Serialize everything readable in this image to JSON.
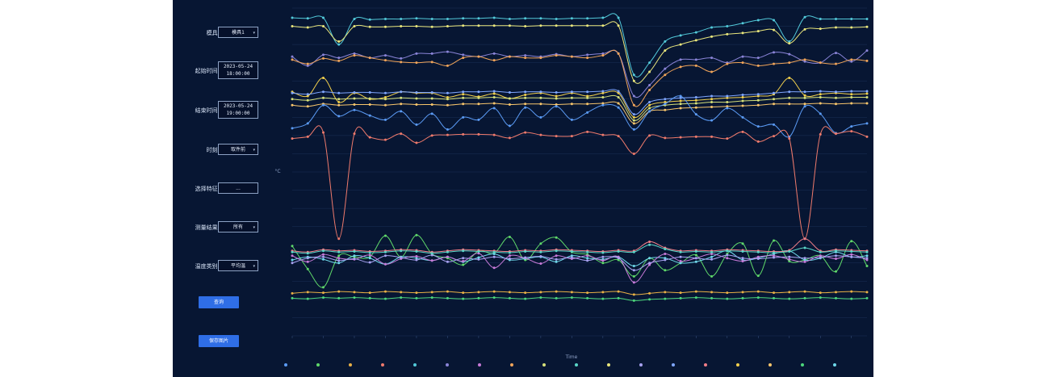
{
  "controls": {
    "mold_label": "模具:",
    "mold_value": "模具1",
    "start_label": "起始时间:",
    "start_date": "2023-05-24",
    "start_time": "18:00:00",
    "end_label": "结束时间:",
    "end_date": "2023-05-24",
    "end_time": "19:00:00",
    "period_label": "时刻:",
    "period_value": "取件前",
    "feature_label": "选择特征:",
    "feature_value": "...",
    "result_label": "测量结果:",
    "result_value": "所有",
    "temp_label": "温度类别:",
    "temp_value": "平均温",
    "query_button": "查询",
    "save_button": "保存图片"
  },
  "colors": {
    "background": "#071633",
    "series": [
      "#5b9bf5",
      "#5fd86a",
      "#e8b046",
      "#ef7a6c",
      "#52c9d9",
      "#8a84d8",
      "#c77ad8",
      "#f0a45a",
      "#d6e07a",
      "#5ad6c8",
      "#e9e67c",
      "#a7a1f0",
      "#7fa6ff",
      "#f07e88",
      "#f2d04c",
      "#f9c66c",
      "#4cd67c",
      "#6fd8ea"
    ]
  },
  "chart_data": {
    "type": "line",
    "xlabel": "Time",
    "ylabel": "°C",
    "y_tick_count": 19,
    "x_point_count": 38,
    "series": [
      {
        "color": "#52c9d9",
        "values": [
          2024,
          2023,
          2024,
          1980,
          2022,
          2021,
          2022,
          2022,
          2023,
          2022,
          2022,
          2023,
          2023,
          2024,
          2022,
          2023,
          2023,
          2022,
          2023,
          2023,
          2024,
          2024,
          1930,
          1950,
          1985,
          1995,
          2000,
          2008,
          2010,
          2015,
          2020,
          2020,
          1985,
          2025,
          2022,
          2022,
          2022,
          2022
        ]
      },
      {
        "color": "#e9e67c",
        "values": [
          2010,
          2008,
          2010,
          1985,
          2010,
          2009,
          2009,
          2010,
          2010,
          2009,
          2010,
          2011,
          2011,
          2011,
          2011,
          2010,
          2011,
          2011,
          2011,
          2011,
          2011,
          2011,
          1920,
          1935,
          1970,
          1980,
          1987,
          1993,
          1997,
          1999,
          2002,
          2004,
          1982,
          2005,
          2006,
          2008,
          2008,
          2009
        ]
      },
      {
        "color": "#8a84d8",
        "values": [
          1960,
          1945,
          1963,
          1958,
          1965,
          1958,
          1962,
          1957,
          1965,
          1965,
          1968,
          1963,
          1960,
          1965,
          1960,
          1962,
          1960,
          1964,
          1960,
          1963,
          1965,
          1965,
          1895,
          1913,
          1940,
          1955,
          1955,
          1958,
          1950,
          1960,
          1958,
          1967,
          1964,
          1952,
          1950,
          1966,
          1952,
          1970
        ]
      },
      {
        "color": "#f0a45a",
        "values": [
          1955,
          1948,
          1957,
          1953,
          1962,
          1958,
          1954,
          1951,
          1950,
          1951,
          1945,
          1958,
          1960,
          1954,
          1960,
          1958,
          1958,
          1962,
          1960,
          1958,
          1962,
          1965,
          1880,
          1905,
          1930,
          1943,
          1945,
          1935,
          1948,
          1950,
          1945,
          1948,
          1950,
          1955,
          1950,
          1948,
          1955,
          1953
        ]
      },
      {
        "color": "#f2d04c",
        "values": [
          1902,
          1895,
          1925,
          1885,
          1900,
          1890,
          1893,
          1902,
          1900,
          1900,
          1893,
          1898,
          1894,
          1899,
          1891,
          1897,
          1900,
          1895,
          1900,
          1895,
          1900,
          1900,
          1860,
          1880,
          1885,
          1887,
          1888,
          1890,
          1892,
          1893,
          1895,
          1898,
          1925,
          1896,
          1898,
          1900,
          1898,
          1899
        ]
      },
      {
        "color": "#7fa6ff",
        "values": [
          1900,
          1898,
          1902,
          1900,
          1901,
          1901,
          1900,
          1902,
          1901,
          1901,
          1900,
          1902,
          1902,
          1903,
          1901,
          1902,
          1902,
          1901,
          1902,
          1902,
          1903,
          1903,
          1865,
          1885,
          1890,
          1892,
          1893,
          1895,
          1895,
          1897,
          1898,
          1900,
          1902,
          1902,
          1903,
          1902,
          1903,
          1903
        ]
      },
      {
        "color": "#d6e07a",
        "values": [
          1890,
          1888,
          1892,
          1890,
          1891,
          1891,
          1890,
          1892,
          1891,
          1891,
          1890,
          1892,
          1892,
          1893,
          1891,
          1892,
          1892,
          1891,
          1892,
          1892,
          1893,
          1893,
          1855,
          1875,
          1880,
          1882,
          1883,
          1885,
          1885,
          1887,
          1888,
          1890,
          1892,
          1892,
          1893,
          1892,
          1893,
          1893
        ]
      },
      {
        "color": "#f9c66c",
        "values": [
          1880,
          1878,
          1882,
          1880,
          1881,
          1881,
          1880,
          1882,
          1881,
          1881,
          1880,
          1882,
          1882,
          1883,
          1881,
          1882,
          1882,
          1881,
          1882,
          1882,
          1883,
          1883,
          1850,
          1870,
          1872,
          1875,
          1876,
          1877,
          1878,
          1879,
          1880,
          1882,
          1882,
          1882,
          1883,
          1882,
          1883,
          1883
        ]
      },
      {
        "color": "#5b9bf5",
        "values": [
          1842,
          1850,
          1880,
          1862,
          1872,
          1863,
          1856,
          1870,
          1848,
          1866,
          1840,
          1860,
          1856,
          1875,
          1846,
          1876,
          1860,
          1878,
          1856,
          1868,
          1880,
          1876,
          1840,
          1870,
          1882,
          1895,
          1865,
          1855,
          1875,
          1860,
          1845,
          1848,
          1828,
          1878,
          1866,
          1834,
          1845,
          1850
        ]
      },
      {
        "color": "#ef7a6c",
        "values": [
          1825,
          1828,
          1835,
          1660,
          1833,
          1827,
          1823,
          1833,
          1818,
          1830,
          1831,
          1832,
          1832,
          1831,
          1826,
          1835,
          1831,
          1829,
          1829,
          1836,
          1831,
          1829,
          1800,
          1830,
          1826,
          1827,
          1828,
          1828,
          1825,
          1836,
          1820,
          1829,
          1825,
          1660,
          1832,
          1833,
          1837,
          1828
        ]
      },
      {
        "color": "#5fd86a",
        "values": [
          1648,
          1610,
          1580,
          1632,
          1630,
          1630,
          1665,
          1630,
          1666,
          1635,
          1628,
          1617,
          1640,
          1636,
          1663,
          1625,
          1652,
          1662,
          1638,
          1634,
          1620,
          1625,
          1598,
          1628,
          1608,
          1620,
          1633,
          1598,
          1635,
          1652,
          1599,
          1657,
          1623,
          1625,
          1632,
          1606,
          1656,
          1615
        ]
      },
      {
        "color": "#6fd8ea",
        "values": [
          1625,
          1630,
          1626,
          1620,
          1632,
          1628,
          1618,
          1630,
          1628,
          1624,
          1630,
          1622,
          1629,
          1635,
          1625,
          1627,
          1630,
          1622,
          1632,
          1628,
          1626,
          1630,
          1615,
          1628,
          1628,
          1620,
          1622,
          1630,
          1640,
          1625,
          1628,
          1635,
          1640,
          1625,
          1628,
          1638,
          1630,
          1632
        ]
      },
      {
        "color": "#c77ad8",
        "values": [
          1632,
          1622,
          1634,
          1628,
          1626,
          1633,
          1618,
          1627,
          1631,
          1624,
          1630,
          1623,
          1636,
          1612,
          1632,
          1628,
          1619,
          1632,
          1627,
          1632,
          1624,
          1630,
          1588,
          1617,
          1635,
          1623,
          1628,
          1635,
          1628,
          1623,
          1630,
          1632,
          1626,
          1622,
          1632,
          1627,
          1634,
          1625
        ]
      },
      {
        "color": "#a7a1f0",
        "values": [
          1620,
          1628,
          1630,
          1624,
          1627,
          1621,
          1632,
          1629,
          1625,
          1633,
          1622,
          1628,
          1626,
          1630,
          1627,
          1629,
          1631,
          1626,
          1629,
          1624,
          1630,
          1628,
          1608,
          1620,
          1625,
          1630,
          1628,
          1626,
          1633,
          1628,
          1627,
          1629,
          1630,
          1628,
          1629,
          1632,
          1630,
          1628
        ]
      },
      {
        "color": "#f07e88",
        "values": [
          1640,
          1638,
          1642,
          1640,
          1641,
          1639,
          1640,
          1642,
          1641,
          1638,
          1640,
          1642,
          1641,
          1640,
          1639,
          1641,
          1640,
          1642,
          1641,
          1640,
          1639,
          1641,
          1640,
          1655,
          1645,
          1640,
          1641,
          1640,
          1642,
          1641,
          1640,
          1639,
          1641,
          1660,
          1640,
          1642,
          1641,
          1640
        ]
      },
      {
        "color": "#5ad6c8",
        "values": [
          1638,
          1636,
          1640,
          1638,
          1639,
          1637,
          1638,
          1640,
          1639,
          1636,
          1638,
          1640,
          1639,
          1638,
          1637,
          1639,
          1638,
          1640,
          1639,
          1638,
          1637,
          1639,
          1638,
          1650,
          1643,
          1638,
          1639,
          1638,
          1640,
          1639,
          1638,
          1637,
          1639,
          1645,
          1638,
          1640,
          1639,
          1638
        ]
      },
      {
        "color": "#e8b046",
        "values": [
          1570,
          1572,
          1571,
          1573,
          1572,
          1571,
          1573,
          1572,
          1571,
          1572,
          1573,
          1571,
          1572,
          1573,
          1572,
          1571,
          1572,
          1573,
          1572,
          1571,
          1572,
          1573,
          1568,
          1570,
          1572,
          1571,
          1573,
          1572,
          1571,
          1572,
          1573,
          1571,
          1572,
          1573,
          1571,
          1572,
          1573,
          1572
        ]
      },
      {
        "color": "#4cd67c",
        "values": [
          1562,
          1561,
          1563,
          1562,
          1563,
          1562,
          1561,
          1563,
          1562,
          1563,
          1562,
          1561,
          1562,
          1563,
          1562,
          1561,
          1563,
          1562,
          1563,
          1562,
          1561,
          1562,
          1558,
          1560,
          1561,
          1562,
          1563,
          1562,
          1561,
          1562,
          1563,
          1562,
          1561,
          1562,
          1563,
          1562,
          1561,
          1562
        ]
      }
    ]
  }
}
